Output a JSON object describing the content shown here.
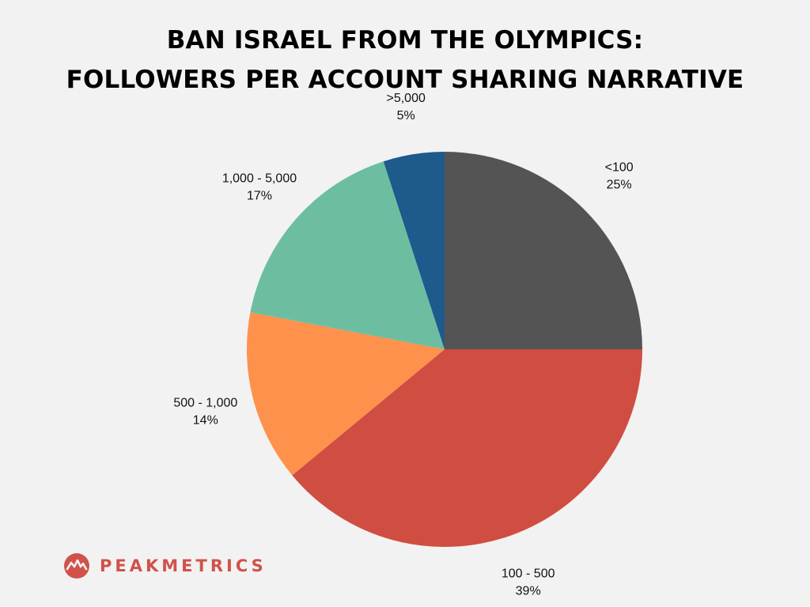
{
  "title": {
    "line1": "BAN ISRAEL FROM THE OLYMPICS:",
    "line2": "FOLLOWERS PER ACCOUNT SHARING NARRATIVE"
  },
  "brand": {
    "name": "PEAKMETRICS",
    "logo_icon": "peakmetrics-logo-icon",
    "color": "#d0524a"
  },
  "chart_data": {
    "type": "pie",
    "title": "BAN ISRAEL FROM THE OLYMPICS: FOLLOWERS PER ACCOUNT SHARING NARRATIVE",
    "start_angle_deg": 0,
    "direction": "clockwise",
    "legend": "none",
    "slices": [
      {
        "label": "<100",
        "value": 25,
        "display": "25%",
        "color": "#545454"
      },
      {
        "label": "100 - 500",
        "value": 39,
        "display": "39%",
        "color": "#cf4e41"
      },
      {
        "label": "500 - 1,000",
        "value": 14,
        "display": "14%",
        "color": "#fe914c"
      },
      {
        "label": "1,000 - 5,000",
        "value": 17,
        "display": "17%",
        "color": "#6dbea1"
      },
      {
        "label": ">5,000",
        "value": 5,
        "display": "5%",
        "color": "#1e5a8c"
      }
    ]
  }
}
